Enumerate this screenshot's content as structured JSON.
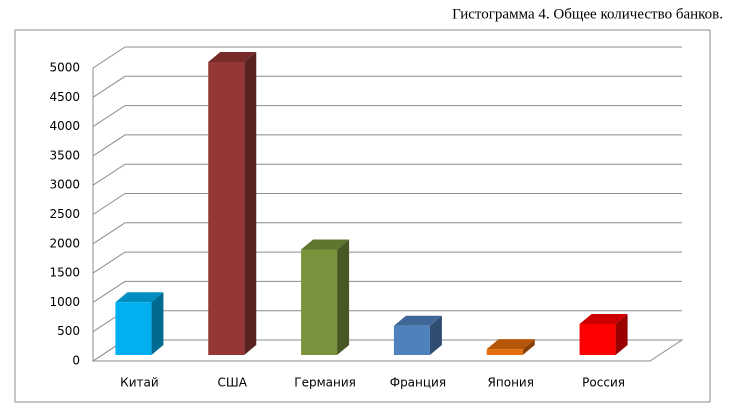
{
  "chart_data": {
    "type": "bar3d",
    "title": "Гистограмма 4. Общее количество банков.",
    "categories": [
      "Китай",
      "США",
      "Германия",
      "Франция",
      "Япония",
      "Россия"
    ],
    "values": [
      900,
      5000,
      1800,
      500,
      100,
      530
    ],
    "colors": [
      "#00b0f0",
      "#953735",
      "#77933c",
      "#4f81bd",
      "#e46c0a",
      "#ff0000"
    ],
    "ylim": [
      0,
      5000
    ],
    "yticks": [
      0,
      500,
      1000,
      1500,
      2000,
      2500,
      3000,
      3500,
      4000,
      4500,
      5000
    ],
    "grid": true
  }
}
